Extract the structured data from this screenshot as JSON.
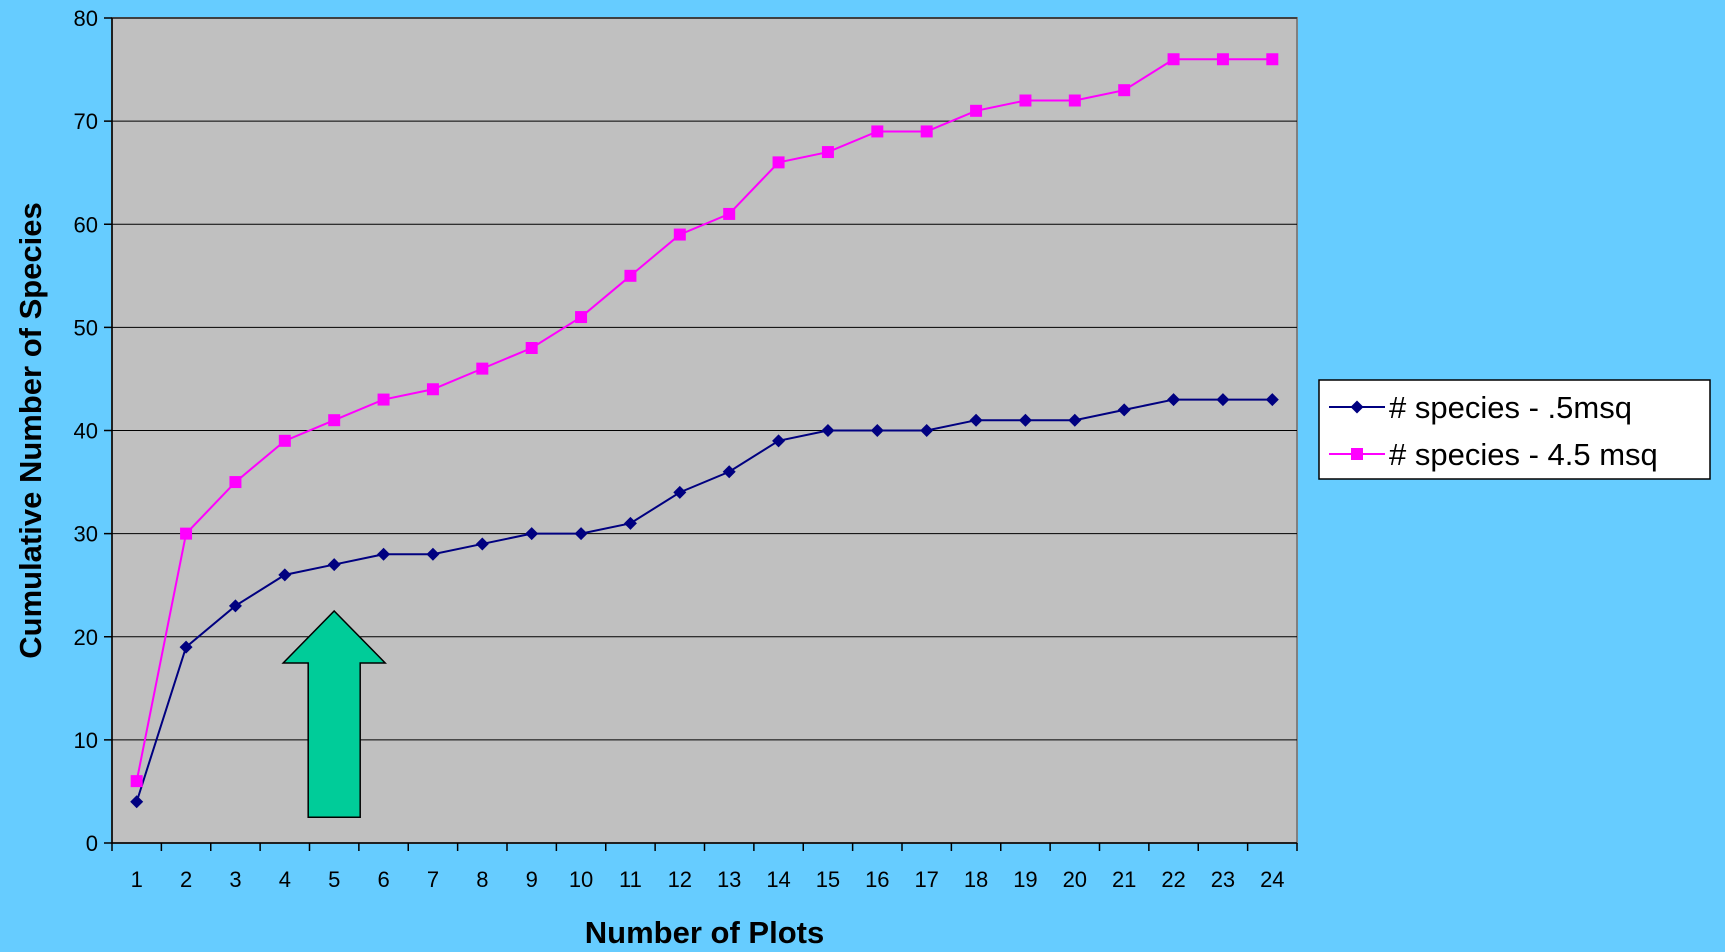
{
  "colors": {
    "background": "#66ccff",
    "plot_area": "#c0c0c0",
    "gridline": "#000000",
    "series_1": "#000080",
    "series_2": "#ff00ff",
    "arrow_fill": "#00cc99",
    "arrow_stroke": "#000000"
  },
  "annotation": {
    "type": "up-arrow",
    "x": 5,
    "y_bottom": 2.5,
    "y_top": 22.5
  },
  "chart_data": {
    "type": "line",
    "title": "",
    "xlabel": "Number of Plots",
    "ylabel": "Cumulative Number of Species",
    "x": [
      1,
      2,
      3,
      4,
      5,
      6,
      7,
      8,
      9,
      10,
      11,
      12,
      13,
      14,
      15,
      16,
      17,
      18,
      19,
      20,
      21,
      22,
      23,
      24
    ],
    "ylim": [
      0,
      80
    ],
    "y_ticks": [
      0,
      10,
      20,
      30,
      40,
      50,
      60,
      70,
      80
    ],
    "grid": "horizontal",
    "legend_position": "right",
    "series": [
      {
        "name": "# species - .5msq",
        "marker": "diamond",
        "values": [
          4,
          19,
          23,
          26,
          27,
          28,
          28,
          29,
          30,
          30,
          31,
          34,
          36,
          39,
          40,
          40,
          40,
          41,
          41,
          41,
          42,
          43,
          43,
          43
        ]
      },
      {
        "name": "# species - 4.5 msq",
        "marker": "square",
        "values": [
          6,
          30,
          35,
          39,
          41,
          43,
          44,
          46,
          48,
          51,
          55,
          59,
          61,
          66,
          67,
          69,
          69,
          71,
          72,
          72,
          73,
          76,
          76,
          76
        ]
      }
    ]
  }
}
